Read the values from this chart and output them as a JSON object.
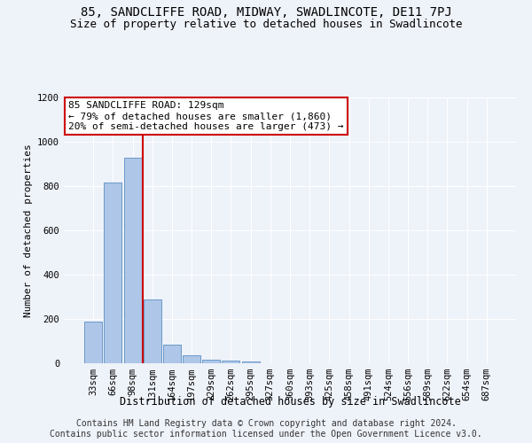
{
  "title1": "85, SANDCLIFFE ROAD, MIDWAY, SWADLINCOTE, DE11 7PJ",
  "title2": "Size of property relative to detached houses in Swadlincote",
  "xlabel": "Distribution of detached houses by size in Swadlincote",
  "ylabel": "Number of detached properties",
  "bin_labels": [
    "33sqm",
    "66sqm",
    "98sqm",
    "131sqm",
    "164sqm",
    "197sqm",
    "229sqm",
    "262sqm",
    "295sqm",
    "327sqm",
    "360sqm",
    "393sqm",
    "425sqm",
    "458sqm",
    "491sqm",
    "524sqm",
    "556sqm",
    "589sqm",
    "622sqm",
    "654sqm",
    "687sqm"
  ],
  "bar_values": [
    190,
    815,
    930,
    290,
    85,
    35,
    18,
    13,
    10,
    0,
    0,
    0,
    0,
    0,
    0,
    0,
    0,
    0,
    0,
    0,
    0
  ],
  "bar_color": "#aec6e8",
  "bar_edge_color": "#5a8fc2",
  "vline_bin": 2,
  "vline_color": "#cc0000",
  "annotation_text": "85 SANDCLIFFE ROAD: 129sqm\n← 79% of detached houses are smaller (1,860)\n20% of semi-detached houses are larger (473) →",
  "annotation_box_color": "#ffffff",
  "annotation_box_edge": "#cc0000",
  "ylim": [
    0,
    1200
  ],
  "yticks": [
    0,
    200,
    400,
    600,
    800,
    1000,
    1200
  ],
  "footer1": "Contains HM Land Registry data © Crown copyright and database right 2024.",
  "footer2": "Contains public sector information licensed under the Open Government Licence v3.0.",
  "bg_color": "#eef2f9",
  "grid_color": "#ffffff",
  "title1_fontsize": 10,
  "title2_fontsize": 9,
  "xlabel_fontsize": 8.5,
  "ylabel_fontsize": 8,
  "tick_fontsize": 7.5,
  "footer_fontsize": 7,
  "annot_fontsize": 8
}
